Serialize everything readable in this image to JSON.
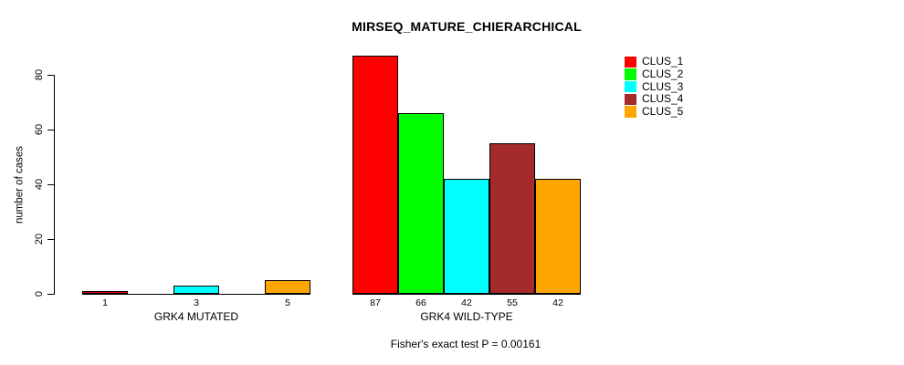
{
  "chart_data": {
    "type": "bar",
    "title": "MIRSEQ_MATURE_CHIERARCHICAL",
    "ylabel": "number of cases",
    "yticks": [
      0,
      20,
      40,
      60,
      80
    ],
    "ylim": [
      0,
      90
    ],
    "grid": false,
    "legend_position": "top-right",
    "clusters": [
      {
        "name": "CLUS_1",
        "color": "#ff0000"
      },
      {
        "name": "CLUS_2",
        "color": "#00ff00"
      },
      {
        "name": "CLUS_3",
        "color": "#00ffff"
      },
      {
        "name": "CLUS_4",
        "color": "#a52a2a"
      },
      {
        "name": "CLUS_5",
        "color": "#ffa500"
      }
    ],
    "groups": [
      {
        "label": "GRK4 MUTATED",
        "bars": [
          {
            "cluster": "CLUS_1",
            "value": 1
          },
          {
            "cluster": "CLUS_3",
            "value": 3
          },
          {
            "cluster": "CLUS_5",
            "value": 5
          }
        ]
      },
      {
        "label": "GRK4 WILD-TYPE",
        "bars": [
          {
            "cluster": "CLUS_1",
            "value": 87
          },
          {
            "cluster": "CLUS_2",
            "value": 66
          },
          {
            "cluster": "CLUS_3",
            "value": 42
          },
          {
            "cluster": "CLUS_4",
            "value": 55
          },
          {
            "cluster": "CLUS_5",
            "value": 42
          }
        ]
      }
    ],
    "annotation": "Fisher's exact test P = 0.00161"
  }
}
